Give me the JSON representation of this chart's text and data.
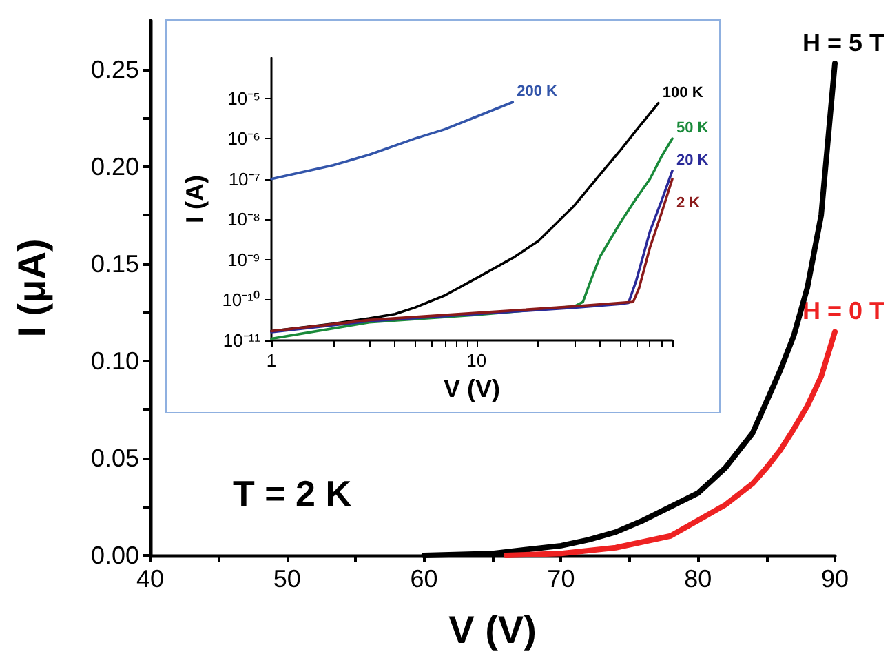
{
  "chart_data": [
    {
      "type": "line",
      "xlabel": "V (V)",
      "ylabel": "I (μA)",
      "annotations": [
        "T = 2 K"
      ],
      "marker": "none",
      "line_style": "solid",
      "grid": false,
      "legend": false,
      "xlim": [
        40,
        90
      ],
      "xticks": [
        40,
        {
          "value": 45,
          "label": null
        },
        50,
        {
          "value": 55,
          "label": null
        },
        60,
        {
          "value": 65,
          "label": null
        },
        70,
        {
          "value": 75,
          "label": null
        },
        80,
        {
          "value": 85,
          "label": null
        },
        90
      ],
      "ylim": [
        0,
        0.275
      ],
      "yticks": [
        {
          "value": 0,
          "label": "0.00"
        },
        {
          "value": 0.025,
          "label": null
        },
        {
          "value": 0.05,
          "label": "0.05"
        },
        {
          "value": 0.075,
          "label": null
        },
        {
          "value": 0.1,
          "label": "0.10"
        },
        {
          "value": 0.125,
          "label": null
        },
        {
          "value": 0.15,
          "label": "0.15"
        },
        {
          "value": 0.175,
          "label": null
        },
        {
          "value": 0.2,
          "label": "0.20"
        },
        {
          "value": 0.225,
          "label": null
        },
        {
          "value": 0.25,
          "label": "0.25"
        }
      ],
      "series": [
        {
          "name": "H = 5 T",
          "color": "#000000",
          "x": [
            60,
            65,
            70,
            72,
            74,
            76,
            78,
            80,
            82,
            84,
            85,
            86,
            87,
            88,
            89,
            90
          ],
          "values": [
            0,
            0.001,
            0.005,
            0.008,
            0.012,
            0.018,
            0.025,
            0.032,
            0.045,
            0.063,
            0.079,
            0.095,
            0.113,
            0.138,
            0.175,
            0.253
          ]
        },
        {
          "name": "H = 0 T",
          "color": "#ee2222",
          "x": [
            66,
            70,
            74,
            76,
            78,
            80,
            82,
            84,
            85,
            86,
            87,
            88,
            89,
            90
          ],
          "values": [
            0,
            0.001,
            0.004,
            0.007,
            0.01,
            0.018,
            0.026,
            0.037,
            0.045,
            0.054,
            0.065,
            0.077,
            0.092,
            0.115
          ]
        }
      ]
    },
    {
      "type": "line",
      "xlabel": "V (V)",
      "ylabel": "I (A)",
      "log": "xy",
      "marker": "none",
      "line_style": "solid",
      "grid": false,
      "legend": false,
      "xlim": [
        1,
        90
      ],
      "xticks": [
        1,
        {
          "value": 2,
          "label": null
        },
        {
          "value": 3,
          "label": null
        },
        {
          "value": 4,
          "label": null
        },
        {
          "value": 5,
          "label": null
        },
        {
          "value": 6,
          "label": null
        },
        {
          "value": 7,
          "label": null
        },
        {
          "value": 8,
          "label": null
        },
        {
          "value": 9,
          "label": null
        },
        10,
        {
          "value": 20,
          "label": null
        },
        {
          "value": 30,
          "label": null
        },
        {
          "value": 40,
          "label": null
        },
        {
          "value": 50,
          "label": null
        },
        {
          "value": 60,
          "label": null
        },
        {
          "value": 70,
          "label": null
        },
        {
          "value": 80,
          "label": null
        },
        {
          "value": 90,
          "label": null
        }
      ],
      "ylim": [
        1e-11,
        0.0001
      ],
      "yticks": [
        {
          "value": 1e-11,
          "label": "10⁻¹¹"
        },
        {
          "value": 1e-10,
          "label": "10⁻¹⁰"
        },
        {
          "value": 1e-09,
          "label": "10⁻⁹"
        },
        {
          "value": 1e-08,
          "label": "10⁻⁸"
        },
        {
          "value": 1e-07,
          "label": "10⁻⁷"
        },
        {
          "value": 1e-06,
          "label": "10⁻⁶"
        },
        {
          "value": 1e-05,
          "label": "10⁻⁵"
        }
      ],
      "series": [
        {
          "name": "200 K",
          "color": "#3355aa",
          "x": [
            1,
            2,
            3,
            5,
            7,
            10,
            15
          ],
          "values": [
            1e-07,
            2.2e-07,
            4e-07,
            1e-06,
            1.7e-06,
            3.5e-06,
            8e-06
          ]
        },
        {
          "name": "100 K",
          "color": "#000000",
          "x": [
            1,
            2,
            3,
            4,
            5,
            7,
            10,
            15,
            20,
            30,
            40,
            50,
            60,
            77
          ],
          "values": [
            1.7e-11,
            2.6e-11,
            3.5e-11,
            4.5e-11,
            6.5e-11,
            1.3e-10,
            3.5e-10,
            1.1e-09,
            2.9e-09,
            2.2e-08,
            1.3e-07,
            5e-07,
            1.6e-06,
            7.6e-06
          ]
        },
        {
          "name": "50 K",
          "color": "#1a8a3a",
          "x": [
            1,
            3,
            10,
            30,
            33,
            36,
            40,
            50,
            60,
            70,
            80,
            90
          ],
          "values": [
            1.1e-11,
            2.8e-11,
            4.3e-11,
            7e-11,
            9e-11,
            3e-10,
            1.2e-09,
            8e-09,
            3.3e-08,
            1e-07,
            3.7e-07,
            1e-06
          ]
        },
        {
          "name": "20 K",
          "color": "#2a2a99",
          "x": [
            1,
            3,
            10,
            30,
            50,
            55,
            60,
            70,
            80,
            90
          ],
          "values": [
            1.6e-11,
            3e-11,
            4.5e-11,
            6.5e-11,
            8e-11,
            8.5e-11,
            3e-10,
            5e-09,
            3e-08,
            1.6e-07
          ]
        },
        {
          "name": "2 K",
          "color": "#8b1a1a",
          "x": [
            1,
            3,
            10,
            30,
            50,
            58,
            62,
            70,
            80,
            90
          ],
          "values": [
            1.7e-11,
            3.2e-11,
            4.8e-11,
            7e-11,
            8.5e-11,
            9e-11,
            2e-10,
            2e-09,
            1.5e-08,
            1e-07
          ]
        }
      ]
    }
  ]
}
